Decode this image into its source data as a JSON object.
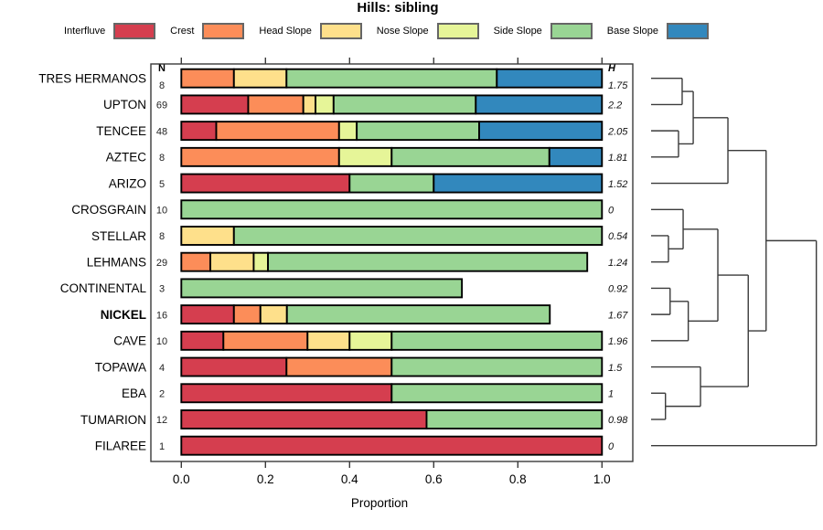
{
  "title": "Hills: sibling",
  "columns": {
    "n_header": "N",
    "h_header": "H"
  },
  "axis": {
    "label": "Proportion",
    "ticks": [
      "0.0",
      "0.2",
      "0.4",
      "0.6",
      "0.8",
      "1.0"
    ]
  },
  "legend": [
    {
      "key": "interfluve",
      "label": "Interfluve",
      "color": "#d53e4f"
    },
    {
      "key": "crest",
      "label": "Crest",
      "color": "#fc8d59"
    },
    {
      "key": "head",
      "label": "Head Slope",
      "color": "#fee08b"
    },
    {
      "key": "nose",
      "label": "Nose Slope",
      "color": "#e6f598"
    },
    {
      "key": "side",
      "label": "Side Slope",
      "color": "#99d594"
    },
    {
      "key": "base",
      "label": "Base Slope",
      "color": "#3288bd"
    }
  ],
  "chart_data": {
    "type": "bar",
    "stacked": true,
    "orientation": "horizontal",
    "xlabel": "Proportion",
    "xlim": [
      0,
      1
    ],
    "grid": false,
    "categories": [
      "TRES HERMANOS",
      "UPTON",
      "TENCEE",
      "AZTEC",
      "ARIZO",
      "CROSGRAIN",
      "STELLAR",
      "LEHMANS",
      "CONTINENTAL",
      "NICKEL",
      "CAVE",
      "TOPAWA",
      "EBA",
      "TUMARION",
      "FILAREE"
    ],
    "rows": [
      {
        "label": "TRES HERMANOS",
        "n": 8,
        "h": "1.75",
        "bold": false,
        "segments": [
          [
            "crest",
            0.125
          ],
          [
            "head",
            0.125
          ],
          [
            "side",
            0.5
          ],
          [
            "base",
            0.25
          ]
        ]
      },
      {
        "label": "UPTON",
        "n": 69,
        "h": "2.2",
        "bold": false,
        "segments": [
          [
            "interfluve",
            0.159
          ],
          [
            "crest",
            0.131
          ],
          [
            "head",
            0.029
          ],
          [
            "nose",
            0.043
          ],
          [
            "side",
            0.338
          ],
          [
            "base",
            0.3
          ]
        ]
      },
      {
        "label": "TENCEE",
        "n": 48,
        "h": "2.05",
        "bold": false,
        "segments": [
          [
            "interfluve",
            0.083
          ],
          [
            "crest",
            0.292
          ],
          [
            "nose",
            0.042
          ],
          [
            "side",
            0.291
          ],
          [
            "base",
            0.292
          ]
        ]
      },
      {
        "label": "AZTEC",
        "n": 8,
        "h": "1.81",
        "bold": false,
        "segments": [
          [
            "crest",
            0.375
          ],
          [
            "nose",
            0.125
          ],
          [
            "side",
            0.375
          ],
          [
            "base",
            0.125
          ]
        ]
      },
      {
        "label": "ARIZO",
        "n": 5,
        "h": "1.52",
        "bold": false,
        "segments": [
          [
            "interfluve",
            0.4
          ],
          [
            "side",
            0.2
          ],
          [
            "base",
            0.4
          ]
        ]
      },
      {
        "label": "CROSGRAIN",
        "n": 10,
        "h": "0",
        "bold": false,
        "segments": [
          [
            "side",
            1.0
          ]
        ]
      },
      {
        "label": "STELLAR",
        "n": 8,
        "h": "0.54",
        "bold": false,
        "segments": [
          [
            "head",
            0.125
          ],
          [
            "side",
            0.875
          ]
        ]
      },
      {
        "label": "LEHMANS",
        "n": 29,
        "h": "1.24",
        "bold": false,
        "segments": [
          [
            "crest",
            0.069
          ],
          [
            "head",
            0.103
          ],
          [
            "nose",
            0.034
          ],
          [
            "side",
            0.759
          ]
        ]
      },
      {
        "label": "CONTINENTAL",
        "n": 3,
        "h": "0.92",
        "bold": false,
        "segments": [
          [
            "side",
            0.667
          ]
        ]
      },
      {
        "label": "NICKEL",
        "n": 16,
        "h": "1.67",
        "bold": true,
        "segments": [
          [
            "interfluve",
            0.125
          ],
          [
            "crest",
            0.063
          ],
          [
            "head",
            0.063
          ],
          [
            "side",
            0.625
          ]
        ]
      },
      {
        "label": "CAVE",
        "n": 10,
        "h": "1.96",
        "bold": false,
        "segments": [
          [
            "interfluve",
            0.1
          ],
          [
            "crest",
            0.2
          ],
          [
            "head",
            0.1
          ],
          [
            "nose",
            0.1
          ],
          [
            "side",
            0.5
          ]
        ]
      },
      {
        "label": "TOPAWA",
        "n": 4,
        "h": "1.5",
        "bold": false,
        "segments": [
          [
            "interfluve",
            0.25
          ],
          [
            "crest",
            0.25
          ],
          [
            "side",
            0.5
          ]
        ]
      },
      {
        "label": "EBA",
        "n": 2,
        "h": "1",
        "bold": false,
        "segments": [
          [
            "interfluve",
            0.5
          ],
          [
            "side",
            0.5
          ]
        ]
      },
      {
        "label": "TUMARION",
        "n": 12,
        "h": "0.98",
        "bold": false,
        "segments": [
          [
            "interfluve",
            0.583
          ],
          [
            "side",
            0.417
          ]
        ]
      },
      {
        "label": "FILAREE",
        "n": 1,
        "h": "0",
        "bold": false,
        "segments": [
          [
            "interfluve",
            1.0
          ]
        ]
      }
    ],
    "dendrogram": {
      "leaf_order": [
        "TRES HERMANOS",
        "UPTON",
        "TENCEE",
        "AZTEC",
        "ARIZO",
        "CROSGRAIN",
        "STELLAR",
        "LEHMANS",
        "CONTINENTAL",
        "NICKEL",
        "CAVE",
        "TOPAWA",
        "EBA",
        "TUMARION",
        "FILAREE"
      ],
      "merges": [
        {
          "a": "L0",
          "b": "L1",
          "h": 0.188
        },
        {
          "a": "L2",
          "b": "L3",
          "h": 0.166
        },
        {
          "a": "M1",
          "b": "M2",
          "h": 0.255
        },
        {
          "a": "M3",
          "b": "L4",
          "h": 0.465
        },
        {
          "a": "L6",
          "b": "L7",
          "h": 0.105
        },
        {
          "a": "L5",
          "b": "M5",
          "h": 0.194
        },
        {
          "a": "L8",
          "b": "L9",
          "h": 0.115
        },
        {
          "a": "M7",
          "b": "L10",
          "h": 0.225
        },
        {
          "a": "M6",
          "b": "M8",
          "h": 0.404
        },
        {
          "a": "L12",
          "b": "L13",
          "h": 0.087
        },
        {
          "a": "L11",
          "b": "M10",
          "h": 0.299
        },
        {
          "a": "M9",
          "b": "M11",
          "h": 0.588
        },
        {
          "a": "M4",
          "b": "M12",
          "h": 0.696
        },
        {
          "a": "M13",
          "b": "L14",
          "h": 1.0
        }
      ]
    }
  }
}
